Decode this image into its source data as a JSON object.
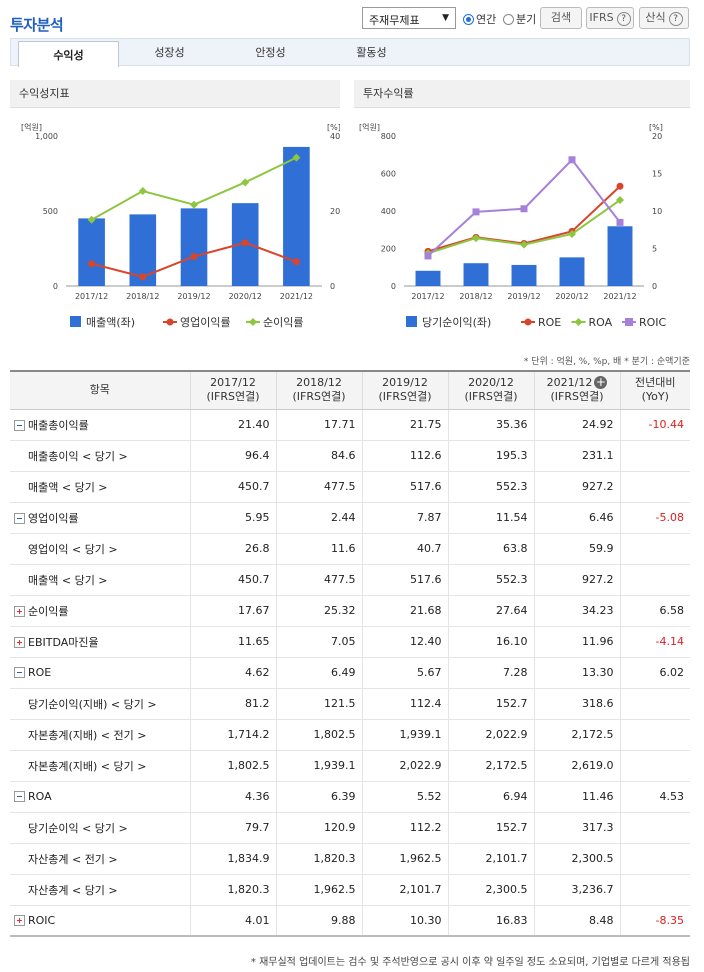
{
  "header": {
    "title": "투자분석",
    "select_value": "주재무제표",
    "radio_annual": "연간",
    "radio_quarter": "분기",
    "search_btn": "검색",
    "ifrs_btn": "IFRS",
    "formula_btn": "산식",
    "help_glyph": "?"
  },
  "tabs": [
    "수익성",
    "성장성",
    "안정성",
    "활동성"
  ],
  "panels": {
    "left_title": "수익성지표",
    "right_title": "투자수익률"
  },
  "colors": {
    "bar": "#2f6fd6",
    "red": "#d9452b",
    "green": "#8dc63f",
    "purple": "#a680d9",
    "neg": "#e02020"
  },
  "chart_data": [
    {
      "type": "bar",
      "title": "수익성지표",
      "unit_left": "[억원]",
      "unit_right": "[%]",
      "categories": [
        "2017/12",
        "2018/12",
        "2019/12",
        "2020/12",
        "2021/12"
      ],
      "left_ticks": [
        "1,000",
        "500",
        "0"
      ],
      "right_ticks": [
        "40",
        "20",
        "0"
      ],
      "ylim_left": [
        0,
        1000
      ],
      "ylim_right": [
        0,
        40
      ],
      "series": [
        {
          "name": "매출액(좌)",
          "type": "bar",
          "axis": "left",
          "values": [
            450.7,
            477.5,
            517.6,
            552.3,
            927.2
          ]
        },
        {
          "name": "영업이익률",
          "type": "line",
          "axis": "right",
          "values": [
            5.95,
            2.44,
            7.87,
            11.54,
            6.46
          ]
        },
        {
          "name": "순이익률",
          "type": "line",
          "axis": "right",
          "values": [
            17.67,
            25.32,
            21.68,
            27.64,
            34.23
          ]
        }
      ]
    },
    {
      "type": "bar",
      "title": "투자수익률",
      "unit_left": "[억원]",
      "unit_right": "[%]",
      "categories": [
        "2017/12",
        "2018/12",
        "2019/12",
        "2020/12",
        "2021/12"
      ],
      "left_ticks": [
        "800",
        "600",
        "400",
        "200",
        "0"
      ],
      "right_ticks": [
        "20",
        "15",
        "10",
        "5",
        "0"
      ],
      "ylim_left": [
        0,
        800
      ],
      "ylim_right": [
        0,
        20
      ],
      "series": [
        {
          "name": "당기순이익(좌)",
          "type": "bar",
          "axis": "left",
          "values": [
            81.2,
            121.5,
            112.4,
            152.7,
            318.6
          ]
        },
        {
          "name": "ROE",
          "type": "line",
          "axis": "right",
          "values": [
            4.62,
            6.49,
            5.67,
            7.28,
            13.3
          ]
        },
        {
          "name": "ROA",
          "type": "line",
          "axis": "right",
          "values": [
            4.36,
            6.39,
            5.52,
            6.94,
            11.46
          ]
        },
        {
          "name": "ROIC",
          "type": "line",
          "axis": "right",
          "values": [
            4.01,
            9.88,
            10.3,
            16.83,
            8.48
          ]
        }
      ]
    }
  ],
  "note": "* 단위 : 억원, %, %p, 배   * 분기 : 순액기준",
  "table": {
    "headers": [
      "항목",
      "2017/12\n(IFRS연결)",
      "2018/12\n(IFRS연결)",
      "2019/12\n(IFRS연결)",
      "2020/12\n(IFRS연결)",
      "2021/12\n(IFRS연결)",
      "전년대비\n(YoY)"
    ],
    "rows": [
      {
        "label": "매출총이익률",
        "toggle": "minus",
        "values": [
          "21.40",
          "17.71",
          "21.75",
          "35.36",
          "24.92"
        ],
        "yoy": "-10.44"
      },
      {
        "label": "매출총이익 < 당기 >",
        "sub": true,
        "values": [
          "96.4",
          "84.6",
          "112.6",
          "195.3",
          "231.1"
        ],
        "yoy": ""
      },
      {
        "label": "매출액 < 당기 >",
        "sub": true,
        "values": [
          "450.7",
          "477.5",
          "517.6",
          "552.3",
          "927.2"
        ],
        "yoy": ""
      },
      {
        "label": "영업이익률",
        "toggle": "minus",
        "values": [
          "5.95",
          "2.44",
          "7.87",
          "11.54",
          "6.46"
        ],
        "yoy": "-5.08"
      },
      {
        "label": "영업이익 < 당기 >",
        "sub": true,
        "values": [
          "26.8",
          "11.6",
          "40.7",
          "63.8",
          "59.9"
        ],
        "yoy": ""
      },
      {
        "label": "매출액 < 당기 >",
        "sub": true,
        "values": [
          "450.7",
          "477.5",
          "517.6",
          "552.3",
          "927.2"
        ],
        "yoy": ""
      },
      {
        "label": "순이익률",
        "toggle": "plus",
        "values": [
          "17.67",
          "25.32",
          "21.68",
          "27.64",
          "34.23"
        ],
        "yoy": "6.58"
      },
      {
        "label": "EBITDA마진율",
        "toggle": "plus",
        "values": [
          "11.65",
          "7.05",
          "12.40",
          "16.10",
          "11.96"
        ],
        "yoy": "-4.14"
      },
      {
        "label": "ROE",
        "toggle": "minus",
        "values": [
          "4.62",
          "6.49",
          "5.67",
          "7.28",
          "13.30"
        ],
        "yoy": "6.02"
      },
      {
        "label": "당기순이익(지배) < 당기 >",
        "sub": true,
        "values": [
          "81.2",
          "121.5",
          "112.4",
          "152.7",
          "318.6"
        ],
        "yoy": ""
      },
      {
        "label": "자본총계(지배) < 전기 >",
        "sub": true,
        "values": [
          "1,714.2",
          "1,802.5",
          "1,939.1",
          "2,022.9",
          "2,172.5"
        ],
        "yoy": ""
      },
      {
        "label": "자본총계(지배) < 당기 >",
        "sub": true,
        "values": [
          "1,802.5",
          "1,939.1",
          "2,022.9",
          "2,172.5",
          "2,619.0"
        ],
        "yoy": ""
      },
      {
        "label": "ROA",
        "toggle": "minus",
        "values": [
          "4.36",
          "6.39",
          "5.52",
          "6.94",
          "11.46"
        ],
        "yoy": "4.53"
      },
      {
        "label": "당기순이익 < 당기 >",
        "sub": true,
        "values": [
          "79.7",
          "120.9",
          "112.2",
          "152.7",
          "317.3"
        ],
        "yoy": ""
      },
      {
        "label": "자산총계 < 전기 >",
        "sub": true,
        "values": [
          "1,834.9",
          "1,820.3",
          "1,962.5",
          "2,101.7",
          "2,300.5"
        ],
        "yoy": ""
      },
      {
        "label": "자산총계 < 당기 >",
        "sub": true,
        "values": [
          "1,820.3",
          "1,962.5",
          "2,101.7",
          "2,300.5",
          "3,236.7"
        ],
        "yoy": ""
      },
      {
        "label": "ROIC",
        "toggle": "plus",
        "values": [
          "4.01",
          "9.88",
          "10.30",
          "16.83",
          "8.48"
        ],
        "yoy": "-8.35"
      }
    ]
  },
  "footer": "* 재무실적 업데이트는 검수 및 주석반영으로 공시 이후 약 일주일 정도 소요되며, 기업별로 다르게 적용됩"
}
